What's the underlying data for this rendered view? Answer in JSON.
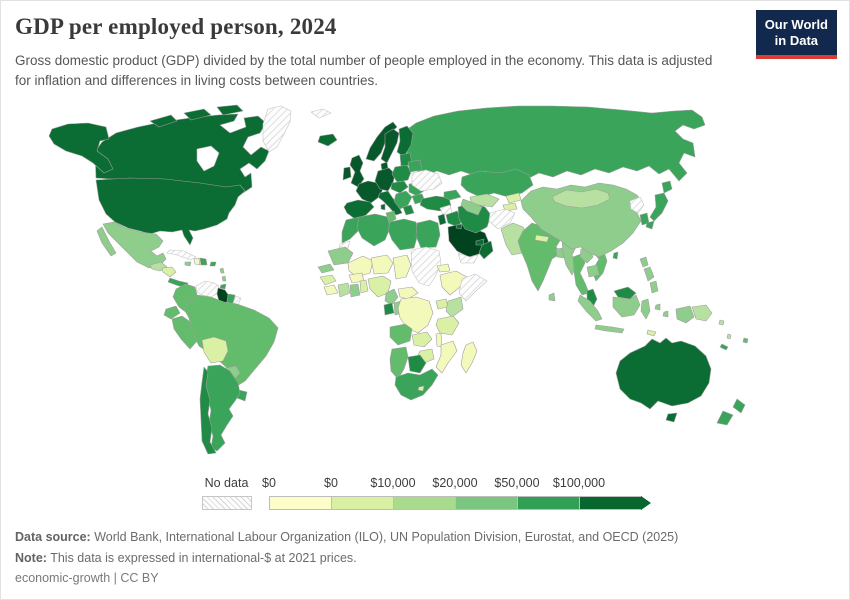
{
  "header": {
    "title": "GDP per employed person, 2024",
    "subtitle": "Gross domestic product (GDP) divided by the total number of people employed in the economy. This data is adjusted for inflation and differences in living costs between countries.",
    "logo": {
      "line1": "Our World",
      "line2": "in Data",
      "bg_color": "#12294d",
      "accent_color": "#dc3d33"
    }
  },
  "legend": {
    "no_data_label": "No data"
  },
  "footer": {
    "source_label": "Data source:",
    "source_text": " World Bank, International Labour Organization (ILO), UN Population Division, Eurostat, and OECD (2025)",
    "note_label": "Note:",
    "note_text": " This data is expressed in international-$ at 2021 prices.",
    "license": "economic-growth | CC BY"
  },
  "chart_data": {
    "type": "choropleth",
    "title": "GDP per employed person, 2024",
    "unit": "international-$ at 2021 prices",
    "legend_position": "bottom",
    "no_data_label": "No data",
    "bins": [
      {
        "min_label": "$0",
        "color": "#fcfdc9"
      },
      {
        "min_label": "$0",
        "color": "#d9f0a3"
      },
      {
        "min_label": "$10,000",
        "color": "#a9db8d"
      },
      {
        "min_label": "$20,000",
        "color": "#7bc67e"
      },
      {
        "min_label": "$50,000",
        "color": "#31a054"
      },
      {
        "min_label": "$100,000",
        "color": "#07672f"
      }
    ],
    "palette": {
      "L1": "#f3f8bb",
      "L2": "#daf0a4",
      "L3": "#b8e1a1",
      "L4": "#8fcd8c",
      "L5": "#63bb6c",
      "L6": "#3aa45a",
      "L7": "#1f8b44",
      "L8": "#0b6d33",
      "L9": "#07582a",
      "L10": "#00431e",
      "water": "#ffffff"
    },
    "shade_bins": {
      "L1": "under $10,000",
      "L2": "under $10,000",
      "L3": "$10,000-$20,000",
      "L4": "$20,000-$50,000",
      "L5": "$20,000-$50,000",
      "L6": "$50,000-$100,000",
      "L7": "$50,000-$100,000",
      "L8": "over $100,000",
      "L9": "over $100,000",
      "L10": "over $100,000",
      "no_data": "No data"
    },
    "regions": [
      {
        "id": "russia",
        "name": "Russia",
        "shade": "L6"
      },
      {
        "id": "canada",
        "name": "Canada",
        "shade": "L8"
      },
      {
        "id": "hudson-bay",
        "name": "Hudson Bay",
        "shade": "water"
      },
      {
        "id": "arctic-1",
        "name": "Canada (Arctic Islands)",
        "shade": "L8"
      },
      {
        "id": "arctic-2",
        "name": "Canada (Arctic Islands)",
        "shade": "L8"
      },
      {
        "id": "arctic-3",
        "name": "Canada (Arctic Islands)",
        "shade": "L8"
      },
      {
        "id": "greenland",
        "name": "Greenland",
        "shade": "no_data"
      },
      {
        "id": "svalbard",
        "name": "Svalbard",
        "shade": "no_data"
      },
      {
        "id": "iceland",
        "name": "Iceland",
        "shade": "L8"
      },
      {
        "id": "alaska",
        "name": "United States (Alaska)",
        "shade": "L8"
      },
      {
        "id": "usa",
        "name": "United States",
        "shade": "L8"
      },
      {
        "id": "mexico",
        "name": "Mexico",
        "shade": "L4"
      },
      {
        "id": "baja",
        "name": "Mexico (Baja California)",
        "shade": "L4"
      },
      {
        "id": "guatemala",
        "name": "Guatemala",
        "shade": "L3"
      },
      {
        "id": "hond-nic",
        "name": "Honduras & Nicaragua",
        "shade": "L2"
      },
      {
        "id": "cr-panama",
        "name": "Costa Rica & Panama",
        "shade": "L6"
      },
      {
        "id": "cuba",
        "name": "Cuba",
        "shade": "no_data"
      },
      {
        "id": "jamaica",
        "name": "Jamaica",
        "shade": "L4"
      },
      {
        "id": "haiti",
        "name": "Haiti",
        "shade": "L1"
      },
      {
        "id": "dom-rep",
        "name": "Dominican Republic",
        "shade": "L6"
      },
      {
        "id": "puerto-rico",
        "name": "Puerto Rico",
        "shade": "L6"
      },
      {
        "id": "antilles-1",
        "name": "Lesser Antilles",
        "shade": "L4"
      },
      {
        "id": "antilles-2",
        "name": "Lesser Antilles",
        "shade": "L4"
      },
      {
        "id": "trinidad",
        "name": "Trinidad and Tobago",
        "shade": "L6"
      },
      {
        "id": "venezuela",
        "name": "Venezuela",
        "shade": "no_data"
      },
      {
        "id": "guyana",
        "name": "Guyana",
        "shade": "L10"
      },
      {
        "id": "suriname",
        "name": "Suriname",
        "shade": "L6"
      },
      {
        "id": "fr-guiana",
        "name": "French Guiana",
        "shade": "no_data"
      },
      {
        "id": "colombia",
        "name": "Colombia",
        "shade": "L5"
      },
      {
        "id": "ecuador",
        "name": "Ecuador",
        "shade": "L5"
      },
      {
        "id": "peru",
        "name": "Peru",
        "shade": "L5"
      },
      {
        "id": "brazil",
        "name": "Brazil",
        "shade": "L5"
      },
      {
        "id": "bolivia",
        "name": "Bolivia",
        "shade": "L2"
      },
      {
        "id": "paraguay",
        "name": "Paraguay",
        "shade": "L4"
      },
      {
        "id": "uruguay",
        "name": "Uruguay",
        "shade": "L6"
      },
      {
        "id": "argentina",
        "name": "Argentina",
        "shade": "L6"
      },
      {
        "id": "chile",
        "name": "Chile",
        "shade": "L7"
      },
      {
        "id": "norway",
        "name": "Norway",
        "shade": "L9"
      },
      {
        "id": "sweden",
        "name": "Sweden",
        "shade": "L9"
      },
      {
        "id": "finland",
        "name": "Finland",
        "shade": "L8"
      },
      {
        "id": "denmark",
        "name": "Denmark",
        "shade": "L9"
      },
      {
        "id": "uk",
        "name": "United Kingdom",
        "shade": "L9"
      },
      {
        "id": "ireland",
        "name": "Ireland",
        "shade": "L9"
      },
      {
        "id": "france",
        "name": "France",
        "shade": "L9"
      },
      {
        "id": "iberia",
        "name": "Spain & Portugal",
        "shade": "L8"
      },
      {
        "id": "germany",
        "name": "Germany & Central Europe",
        "shade": "L9"
      },
      {
        "id": "italy",
        "name": "Italy",
        "shade": "L8"
      },
      {
        "id": "sicily",
        "name": "Italy (Sicily)",
        "shade": "L8"
      },
      {
        "id": "sardinia",
        "name": "Italy (Sardinia)",
        "shade": "L8"
      },
      {
        "id": "poland",
        "name": "Poland",
        "shade": "L7"
      },
      {
        "id": "baltics",
        "name": "Baltic States",
        "shade": "L7"
      },
      {
        "id": "czechia",
        "name": "Czechia, Slovakia & Hungary",
        "shade": "L7"
      },
      {
        "id": "balkans",
        "name": "Western Balkans",
        "shade": "L6"
      },
      {
        "id": "greece",
        "name": "Greece",
        "shade": "L7"
      },
      {
        "id": "romania",
        "name": "Romania",
        "shade": "L6"
      },
      {
        "id": "bulgaria",
        "name": "Bulgaria",
        "shade": "L6"
      },
      {
        "id": "belarus",
        "name": "Belarus",
        "shade": "L6"
      },
      {
        "id": "ukraine",
        "name": "Ukraine",
        "shade": "no_data"
      },
      {
        "id": "turkey",
        "name": "Turkey",
        "shade": "L7"
      },
      {
        "id": "caucasus",
        "name": "Georgia & Azerbaijan",
        "shade": "L6"
      },
      {
        "id": "morocco",
        "name": "Morocco",
        "shade": "L6"
      },
      {
        "id": "w-sahara",
        "name": "Western Sahara",
        "shade": "no_data"
      },
      {
        "id": "algeria",
        "name": "Algeria",
        "shade": "L6"
      },
      {
        "id": "tunisia",
        "name": "Tunisia",
        "shade": "L5"
      },
      {
        "id": "libya",
        "name": "Libya",
        "shade": "L6"
      },
      {
        "id": "egypt",
        "name": "Egypt",
        "shade": "L6"
      },
      {
        "id": "mauritania",
        "name": "Mauritania",
        "shade": "L4"
      },
      {
        "id": "senegal",
        "name": "Senegal",
        "shade": "L4"
      },
      {
        "id": "mali",
        "name": "Mali",
        "shade": "L1"
      },
      {
        "id": "niger",
        "name": "Niger",
        "shade": "L1"
      },
      {
        "id": "chad",
        "name": "Chad",
        "shade": "L1"
      },
      {
        "id": "sudan",
        "name": "Sudan & South Sudan",
        "shade": "no_data"
      },
      {
        "id": "eritrea",
        "name": "Eritrea",
        "shade": "L1"
      },
      {
        "id": "ethiopia",
        "name": "Ethiopia",
        "shade": "L1"
      },
      {
        "id": "somalia",
        "name": "Somalia",
        "shade": "no_data"
      },
      {
        "id": "guinea",
        "name": "Guinea",
        "shade": "L2"
      },
      {
        "id": "liberia",
        "name": "Sierra Leone & Liberia",
        "shade": "L1"
      },
      {
        "id": "ivory-coast",
        "name": "Cote d'Ivoire",
        "shade": "L3"
      },
      {
        "id": "ghana",
        "name": "Ghana",
        "shade": "L4"
      },
      {
        "id": "burkina",
        "name": "Burkina Faso",
        "shade": "L1"
      },
      {
        "id": "benin",
        "name": "Togo & Benin",
        "shade": "L2"
      },
      {
        "id": "nigeria",
        "name": "Nigeria",
        "shade": "L2"
      },
      {
        "id": "cameroon",
        "name": "Cameroon",
        "shade": "L4"
      },
      {
        "id": "car",
        "name": "Central African Republic",
        "shade": "L1"
      },
      {
        "id": "gabon",
        "name": "Gabon",
        "shade": "L7"
      },
      {
        "id": "congo",
        "name": "Congo",
        "shade": "L4"
      },
      {
        "id": "drc",
        "name": "Democratic Republic of Congo",
        "shade": "L1"
      },
      {
        "id": "uganda",
        "name": "Uganda",
        "shade": "L2"
      },
      {
        "id": "kenya",
        "name": "Kenya",
        "shade": "L3"
      },
      {
        "id": "tanzania",
        "name": "Tanzania",
        "shade": "L2"
      },
      {
        "id": "angola",
        "name": "Angola",
        "shade": "L5"
      },
      {
        "id": "zambia",
        "name": "Zambia",
        "shade": "L2"
      },
      {
        "id": "malawi",
        "name": "Malawi",
        "shade": "L1"
      },
      {
        "id": "mozambique",
        "name": "Mozambique",
        "shade": "L1"
      },
      {
        "id": "zimbabwe",
        "name": "Zimbabwe",
        "shade": "L2"
      },
      {
        "id": "botswana",
        "name": "Botswana",
        "shade": "L7"
      },
      {
        "id": "namibia",
        "name": "Namibia",
        "shade": "L5"
      },
      {
        "id": "south-africa",
        "name": "South Africa",
        "shade": "L6"
      },
      {
        "id": "lesotho",
        "name": "Lesotho",
        "shade": "L2"
      },
      {
        "id": "madagascar",
        "name": "Madagascar",
        "shade": "L1"
      },
      {
        "id": "syria",
        "name": "Syria",
        "shade": "no_data"
      },
      {
        "id": "iraq",
        "name": "Iraq",
        "shade": "L7"
      },
      {
        "id": "israel-jordan",
        "name": "Israel & Jordan",
        "shade": "L8"
      },
      {
        "id": "saudi",
        "name": "Saudi Arabia",
        "shade": "L10"
      },
      {
        "id": "yemen",
        "name": "Yemen",
        "shade": "no_data"
      },
      {
        "id": "oman",
        "name": "Oman",
        "shade": "L8"
      },
      {
        "id": "uae",
        "name": "United Arab Emirates",
        "shade": "L8"
      },
      {
        "id": "kuwait",
        "name": "Kuwait",
        "shade": "L8"
      },
      {
        "id": "iran",
        "name": "Iran",
        "shade": "L7"
      },
      {
        "id": "kazakhstan",
        "name": "Kazakhstan",
        "shade": "L6"
      },
      {
        "id": "uzbekistan",
        "name": "Uzbekistan",
        "shade": "L3"
      },
      {
        "id": "turkmenistan",
        "name": "Turkmenistan",
        "shade": "L4"
      },
      {
        "id": "kyrgyzstan",
        "name": "Kyrgyzstan",
        "shade": "L2"
      },
      {
        "id": "tajikistan",
        "name": "Tajikistan",
        "shade": "L2"
      },
      {
        "id": "afghanistan",
        "name": "Afghanistan",
        "shade": "no_data"
      },
      {
        "id": "pakistan",
        "name": "Pakistan",
        "shade": "L3"
      },
      {
        "id": "india",
        "name": "India",
        "shade": "L5"
      },
      {
        "id": "nepal",
        "name": "Nepal",
        "shade": "L2"
      },
      {
        "id": "bangladesh",
        "name": "Bangladesh",
        "shade": "L4"
      },
      {
        "id": "sri-lanka",
        "name": "Sri Lanka",
        "shade": "L4"
      },
      {
        "id": "myanmar",
        "name": "Myanmar",
        "shade": "L4"
      },
      {
        "id": "thailand",
        "name": "Thailand",
        "shade": "L5"
      },
      {
        "id": "laos",
        "name": "Laos",
        "shade": "L4"
      },
      {
        "id": "vietnam",
        "name": "Vietnam",
        "shade": "L5"
      },
      {
        "id": "cambodia",
        "name": "Cambodia",
        "shade": "L4"
      },
      {
        "id": "malaysia-pen",
        "name": "Malaysia",
        "shade": "L7"
      },
      {
        "id": "china",
        "name": "China",
        "shade": "L4"
      },
      {
        "id": "mongolia",
        "name": "Mongolia",
        "shade": "L3"
      },
      {
        "id": "n-korea",
        "name": "North Korea",
        "shade": "no_data"
      },
      {
        "id": "s-korea",
        "name": "South Korea",
        "shade": "L6"
      },
      {
        "id": "japan-hokkaido",
        "name": "Japan (Hokkaido)",
        "shade": "L6"
      },
      {
        "id": "japan-honshu",
        "name": "Japan",
        "shade": "L6"
      },
      {
        "id": "japan-kyushu",
        "name": "Japan (Kyushu)",
        "shade": "L6"
      },
      {
        "id": "taiwan",
        "name": "Taiwan",
        "shade": "L6"
      },
      {
        "id": "phil-1",
        "name": "Philippines",
        "shade": "L4"
      },
      {
        "id": "phil-2",
        "name": "Philippines",
        "shade": "L4"
      },
      {
        "id": "phil-3",
        "name": "Philippines",
        "shade": "L4"
      },
      {
        "id": "sumatra",
        "name": "Indonesia (Sumatra)",
        "shade": "L4"
      },
      {
        "id": "java",
        "name": "Indonesia (Java)",
        "shade": "L4"
      },
      {
        "id": "borneo-my",
        "name": "Malaysia (Borneo)",
        "shade": "L7"
      },
      {
        "id": "borneo-id",
        "name": "Indonesia (Kalimantan)",
        "shade": "L4"
      },
      {
        "id": "sulawesi",
        "name": "Indonesia (Sulawesi)",
        "shade": "L4"
      },
      {
        "id": "molucca-1",
        "name": "Indonesia (Maluku)",
        "shade": "L4"
      },
      {
        "id": "molucca-2",
        "name": "Indonesia (Maluku)",
        "shade": "L4"
      },
      {
        "id": "timor",
        "name": "Timor-Leste",
        "shade": "L2"
      },
      {
        "id": "west-papua",
        "name": "Indonesia (Papua)",
        "shade": "L4"
      },
      {
        "id": "png",
        "name": "Papua New Guinea",
        "shade": "L3"
      },
      {
        "id": "solomon",
        "name": "Solomon Islands",
        "shade": "L3"
      },
      {
        "id": "vanuatu",
        "name": "Vanuatu",
        "shade": "L3"
      },
      {
        "id": "fiji",
        "name": "Fiji",
        "shade": "L5"
      },
      {
        "id": "new-caledonia",
        "name": "New Caledonia",
        "shade": "L6"
      },
      {
        "id": "australia",
        "name": "Australia",
        "shade": "L8"
      },
      {
        "id": "tasmania",
        "name": "Australia (Tasmania)",
        "shade": "L8"
      },
      {
        "id": "nz-north",
        "name": "New Zealand (North Island)",
        "shade": "L6"
      },
      {
        "id": "nz-south",
        "name": "New Zealand (South Island)",
        "shade": "L6"
      }
    ]
  }
}
